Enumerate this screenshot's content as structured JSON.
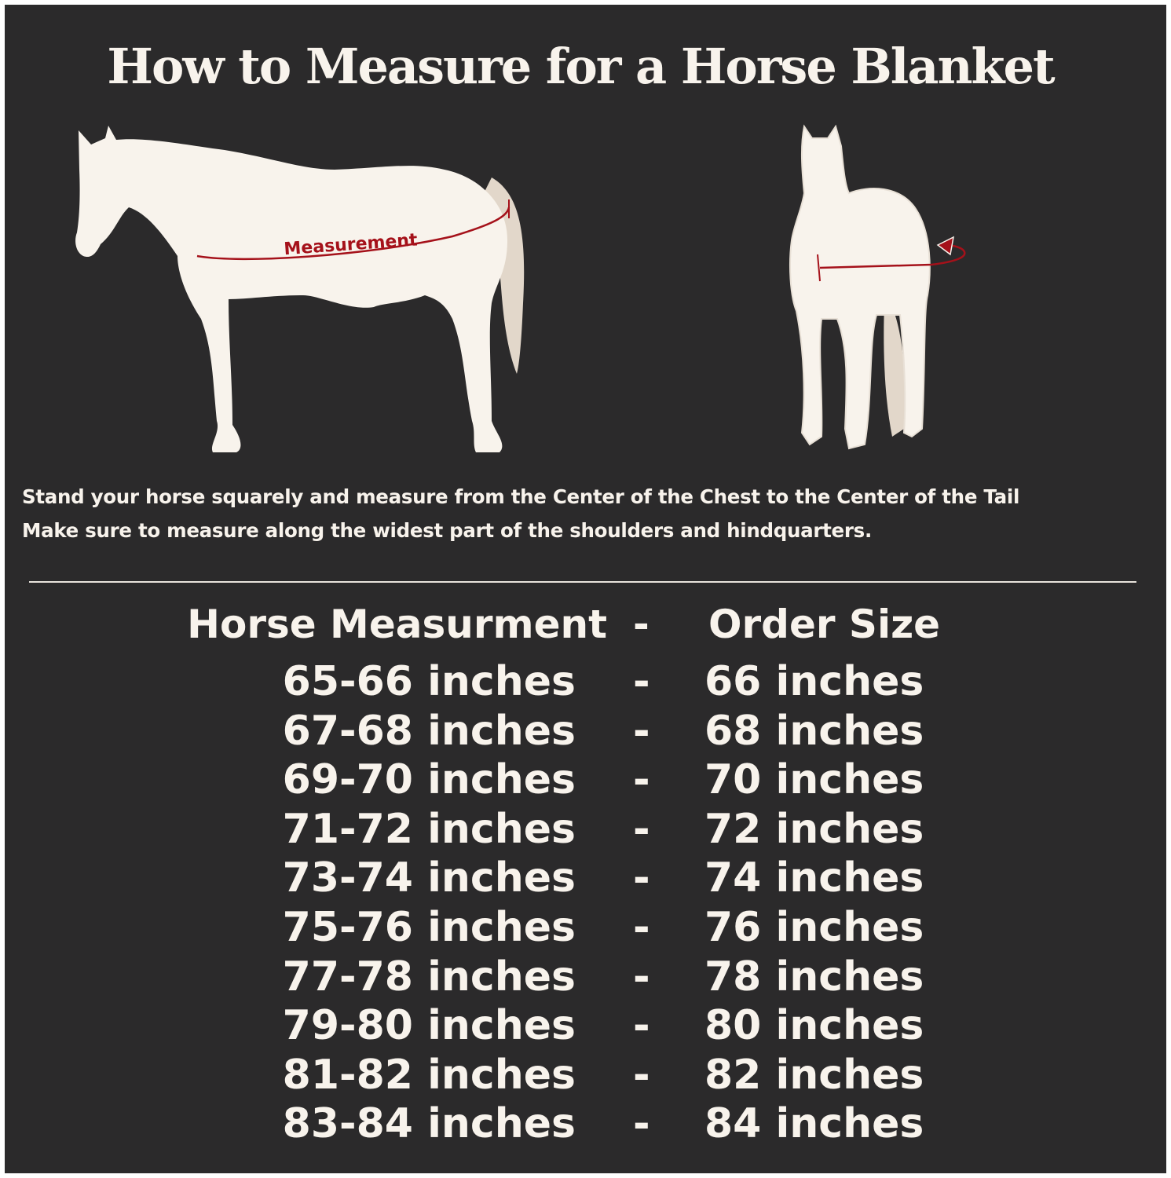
{
  "title": "How to Measure for a Horse Blanket",
  "illustration": {
    "side_label": "Measurement",
    "measure_color": "#a5111a",
    "horse_color": "#f8f3ec",
    "tail_color": "#e2d7ca"
  },
  "instructions": [
    "Stand your horse squarely and measure from the Center of the Chest to the Center of the Tail",
    "Make sure to measure along the widest part of the shoulders and hindquarters."
  ],
  "table": {
    "header": {
      "measurement": "Horse Measurment",
      "separator": "-",
      "size": "Order Size"
    },
    "rows": [
      {
        "measurement": "65-66 inches",
        "separator": "-",
        "size": "66 inches"
      },
      {
        "measurement": "67-68 inches",
        "separator": "-",
        "size": "68 inches"
      },
      {
        "measurement": "69-70 inches",
        "separator": "-",
        "size": "70 inches"
      },
      {
        "measurement": "71-72 inches",
        "separator": "-",
        "size": "72 inches"
      },
      {
        "measurement": "73-74 inches",
        "separator": "-",
        "size": "74 inches"
      },
      {
        "measurement": "75-76 inches",
        "separator": "-",
        "size": "76 inches"
      },
      {
        "measurement": "77-78 inches",
        "separator": "-",
        "size": "78 inches"
      },
      {
        "measurement": "79-80 inches",
        "separator": "-",
        "size": "80 inches"
      },
      {
        "measurement": "81-82 inches",
        "separator": "-",
        "size": "82 inches"
      },
      {
        "measurement": "83-84 inches",
        "separator": "-",
        "size": "84 inches"
      }
    ]
  }
}
